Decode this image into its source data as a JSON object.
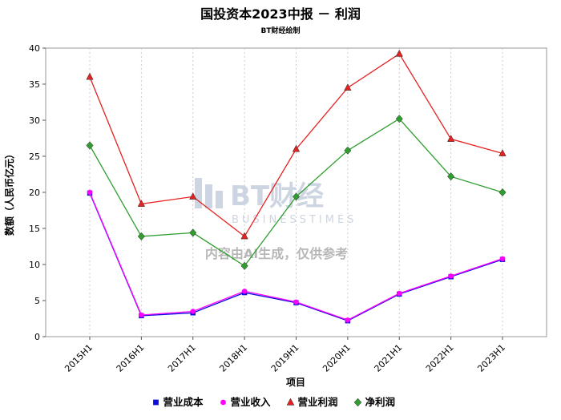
{
  "chart_data": {
    "type": "line",
    "title": "国投资本2023中报 － 利润",
    "subtitle": "BT财经绘制",
    "xlabel": "项目",
    "ylabel": "数额（人民币亿元）",
    "categories": [
      "2015H1",
      "2016H1",
      "2017H1",
      "2018H1",
      "2019H1",
      "2020H1",
      "2021H1",
      "2022H1",
      "2023H1"
    ],
    "ylim": [
      0,
      40
    ],
    "ytick_step": 5,
    "grid": "vertical-dashed",
    "legend_position": "bottom",
    "series": [
      {
        "name": "营业成本",
        "color": "#0d0de0",
        "marker": "square",
        "values": [
          19.9,
          2.9,
          3.3,
          6.1,
          4.7,
          2.2,
          5.9,
          8.3,
          10.7
        ]
      },
      {
        "name": "营业收入",
        "color": "#ff00ff",
        "marker": "circle",
        "values": [
          20.0,
          3.0,
          3.5,
          6.3,
          4.8,
          2.3,
          6.0,
          8.4,
          10.8
        ]
      },
      {
        "name": "营业利润",
        "color": "#e62222",
        "marker": "triangle",
        "values": [
          36.0,
          18.4,
          19.4,
          13.9,
          26.0,
          34.5,
          39.2,
          27.4,
          25.4
        ]
      },
      {
        "name": "净利润",
        "color": "#2f9e2f",
        "marker": "diamond",
        "values": [
          26.5,
          13.9,
          14.4,
          9.8,
          19.4,
          25.8,
          30.2,
          22.2,
          20.0
        ]
      }
    ]
  },
  "watermark": {
    "brand": "BT财经",
    "brand_sub": "BUSINESSTIMES",
    "note": "内容由AI生成，仅供参考"
  }
}
